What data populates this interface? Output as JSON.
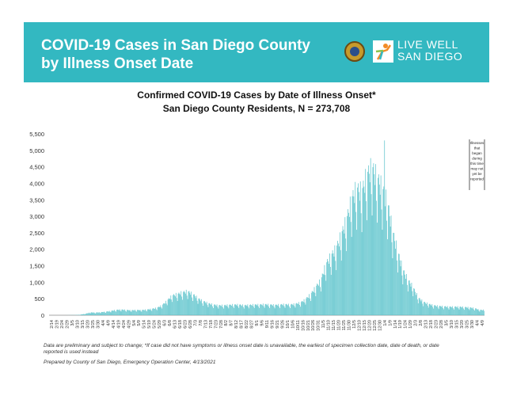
{
  "banner": {
    "title_line1": "COVID-19 Cases in San Diego County",
    "title_line2": "by Illness Onset Date",
    "logo_line1": "LIVE WELL",
    "logo_line2": "SAN DIEGO",
    "color": "#33b8c1"
  },
  "chart_data": {
    "type": "bar",
    "title": "Confirmed COVID-19 Cases by Date of Illness Onset*",
    "subtitle": "San Diego County Residents, N = 273,708",
    "xlabel": "",
    "ylabel": "",
    "ylim": [
      0,
      5500
    ],
    "yticks": [
      "0",
      "500",
      "1,000",
      "1,500",
      "2,000",
      "2,500",
      "3,000",
      "3,500",
      "4,000",
      "4,500",
      "5,000",
      "5,500"
    ],
    "x_start": "2/14",
    "x_end": "4/13",
    "x_tick_labels": [
      "2/14",
      "2/19",
      "2/24",
      "2/29",
      "3/5",
      "3/10",
      "3/15",
      "3/20",
      "3/25",
      "3/30",
      "4/4",
      "4/9",
      "4/14",
      "4/19",
      "4/24",
      "4/29",
      "5/4",
      "5/9",
      "5/14",
      "5/19",
      "5/24",
      "5/29",
      "6/3",
      "6/8",
      "6/13",
      "6/18",
      "6/23",
      "6/28",
      "7/3",
      "7/8",
      "7/13",
      "7/18",
      "7/23",
      "7/28",
      "8/2",
      "8/7",
      "8/12",
      "8/17",
      "8/22",
      "8/27",
      "9/1",
      "9/6",
      "9/11",
      "9/16",
      "9/21",
      "9/26",
      "10/1",
      "10/6",
      "10/11",
      "10/16",
      "10/21",
      "10/26",
      "10/31",
      "11/5",
      "11/10",
      "11/15",
      "11/20",
      "11/25",
      "11/30",
      "12/5",
      "12/10",
      "12/15",
      "12/20",
      "12/25",
      "12/30",
      "1/4",
      "1/9",
      "1/14",
      "1/19",
      "1/24",
      "1/29",
      "2/3",
      "2/8",
      "2/13",
      "2/18",
      "2/23",
      "2/28",
      "3/5",
      "3/10",
      "3/15",
      "3/20",
      "3/25",
      "3/30",
      "4/4",
      "4/9"
    ],
    "series_color": "#5ec4cc",
    "grid": false,
    "legend": "none",
    "annotation": "Illnesses that began during this time may not yet be reported",
    "weekly_level": [
      0,
      0,
      0,
      0,
      3,
      5,
      15,
      40,
      80,
      75,
      85,
      100,
      120,
      150,
      160,
      150,
      140,
      150,
      145,
      160,
      180,
      210,
      280,
      420,
      560,
      600,
      650,
      680,
      600,
      480,
      400,
      340,
      300,
      280,
      280,
      290,
      300,
      300,
      280,
      290,
      300,
      300,
      310,
      300,
      290,
      300,
      310,
      300,
      320,
      360,
      450,
      600,
      800,
      1000,
      1450,
      1700,
      1900,
      2300,
      2700,
      3300,
      3600,
      3500,
      4000,
      4200,
      3900,
      3600,
      3200,
      2400,
      1800,
      1300,
      1000,
      800,
      500,
      380,
      320,
      280,
      260,
      250,
      240,
      240,
      240,
      230,
      220,
      200,
      150
    ],
    "peak_values": [
      {
        "date": "1/4",
        "value": 5300
      },
      {
        "date": "12/28",
        "value": 4750
      },
      {
        "date": "12/14",
        "value": 3800
      }
    ]
  },
  "footnotes": {
    "line1": "Data are preliminary and subject to change; *If case did not have symptoms or illness onset date is unavailable, the earliest of specimen collection date, date of death, or date",
    "line2": "reported is used instead",
    "line3": "Prepared by County of San Diego, Emergency Operation Center, 4/13/2021"
  }
}
